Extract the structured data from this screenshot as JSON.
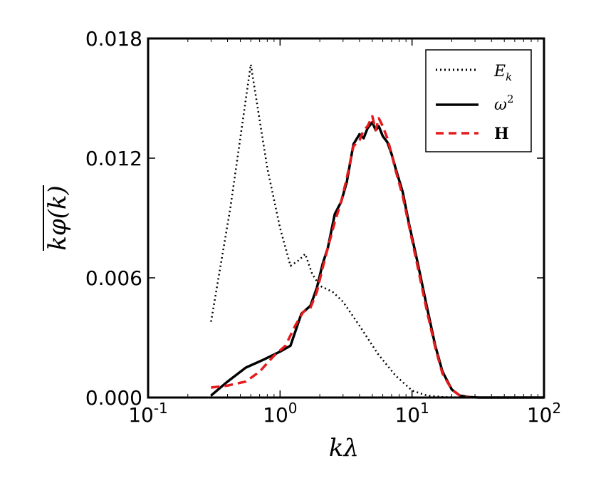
{
  "chart_data": {
    "type": "line",
    "xscale": "log",
    "xlim": [
      0.1,
      100
    ],
    "ylim": [
      0,
      0.018
    ],
    "xlabel": "kλ",
    "ylabel": "kφ(k)",
    "x_ticks": [
      {
        "base": "10",
        "exp": "-1",
        "value": 0.1
      },
      {
        "base": "10",
        "exp": "0",
        "value": 1
      },
      {
        "base": "10",
        "exp": "1",
        "value": 10
      },
      {
        "base": "10",
        "exp": "2",
        "value": 100
      }
    ],
    "y_ticks": [
      {
        "label": "0.000",
        "value": 0
      },
      {
        "label": "0.006",
        "value": 0.006
      },
      {
        "label": "0.012",
        "value": 0.012
      },
      {
        "label": "0.018",
        "value": 0.018
      }
    ],
    "legend_position": "top-right",
    "series": [
      {
        "name": "E",
        "name_sub": "k",
        "style": "dotted",
        "color": "#000000",
        "x": [
          0.3,
          0.42,
          0.6,
          0.8,
          1.0,
          1.2,
          1.4,
          1.55,
          1.75,
          2.0,
          2.5,
          3.0,
          4.0,
          5.5,
          7.5,
          10,
          13,
          17,
          22,
          27
        ],
        "y": [
          0.0038,
          0.0095,
          0.0167,
          0.0115,
          0.0085,
          0.0066,
          0.0069,
          0.0072,
          0.0062,
          0.0056,
          0.0053,
          0.0048,
          0.0036,
          0.0022,
          0.0011,
          0.00035,
          0.0001,
          3e-05,
          1e-05,
          0.0
        ]
      },
      {
        "name": "ω",
        "name_sup": "2",
        "style": "solid",
        "color": "#000000",
        "x": [
          0.3,
          0.4,
          0.55,
          0.75,
          1.0,
          1.2,
          1.45,
          1.7,
          1.9,
          2.1,
          2.3,
          2.6,
          2.9,
          3.2,
          3.6,
          4.0,
          4.3,
          4.6,
          5.0,
          5.3,
          5.6,
          6.0,
          6.5,
          7.0,
          7.5,
          8.5,
          9.5,
          11,
          13,
          15,
          17,
          20,
          23,
          27,
          32,
          40,
          60,
          100
        ],
        "y": [
          0.0001,
          0.0008,
          0.0015,
          0.0019,
          0.0023,
          0.0026,
          0.0042,
          0.0046,
          0.0055,
          0.0067,
          0.0075,
          0.0092,
          0.0098,
          0.0108,
          0.0127,
          0.0132,
          0.013,
          0.0135,
          0.0138,
          0.0134,
          0.0136,
          0.0131,
          0.0128,
          0.0122,
          0.0115,
          0.0103,
          0.0087,
          0.0068,
          0.0045,
          0.0026,
          0.0013,
          0.0004,
          0.0001,
          2e-05,
          0.0,
          0.0,
          0.0,
          0.0
        ]
      },
      {
        "name": "H",
        "style": "dashed",
        "color": "#e41a1c",
        "x": [
          0.3,
          0.4,
          0.55,
          0.7,
          0.9,
          1.1,
          1.3,
          1.5,
          1.7,
          1.9,
          2.1,
          2.3,
          2.6,
          2.9,
          3.2,
          3.6,
          4.0,
          4.3,
          4.6,
          5.0,
          5.3,
          5.6,
          6.0,
          6.5,
          7.0,
          7.5,
          8.5,
          9.5,
          11,
          13,
          15,
          17,
          20,
          23,
          27
        ],
        "y": [
          0.0005,
          0.0006,
          0.0008,
          0.0013,
          0.0021,
          0.0026,
          0.0036,
          0.0043,
          0.0045,
          0.0053,
          0.0065,
          0.0075,
          0.0088,
          0.0098,
          0.011,
          0.0126,
          0.0129,
          0.0134,
          0.0136,
          0.0141,
          0.0134,
          0.014,
          0.0136,
          0.013,
          0.0122,
          0.0114,
          0.0101,
          0.0086,
          0.0066,
          0.0043,
          0.0025,
          0.0012,
          0.0004,
          0.0001,
          0.0
        ]
      }
    ]
  }
}
